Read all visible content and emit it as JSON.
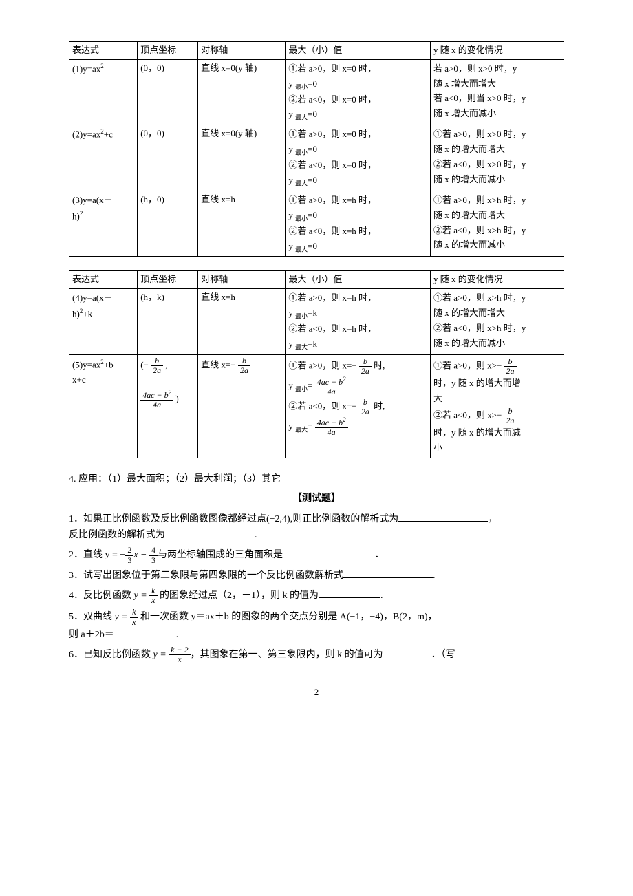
{
  "table1": {
    "headers": [
      "表达式",
      "顶点坐标",
      "对称轴",
      "最大（小）值",
      "y 随 x 的变化情况"
    ],
    "rows": [
      {
        "expr": "(1)y=ax",
        "sup": "2",
        "vertex": "(0，0)",
        "axis": "直线 x=0(y 轴)",
        "mm1": "①若 a>0，则 x=0 时，",
        "mm2": "y 最小=0",
        "mm3": "②若 a<0，则 x=0 时，",
        "mm4": "y 最大=0",
        "ch1": "若 a>0，则 x>0 时，y",
        "ch2": "随 x 增大而增大",
        "ch3": "若 a<0，则当 x>0 时，y",
        "ch4": "随 x 增大而减小"
      },
      {
        "expr": "(2)y=ax",
        "sup": "2",
        "after": "+c",
        "vertex": "(0，0)",
        "axis": "直线 x=0(y 轴)",
        "mm1": "①若 a>0，则 x=0 时，",
        "mm2": "y 最小=0",
        "mm3": "②若 a<0，则 x=0 时，",
        "mm4": "y 最大=0",
        "ch1": "①若 a>0，则 x>0 时，y",
        "ch2": "随 x 的增大而增大",
        "ch3": "②若 a<0，则 x>0 时，y",
        "ch4": "随 x 的增大而减小"
      },
      {
        "expr1": "(3)y=a(x－",
        "expr2": "h)",
        "sup": "2",
        "vertex": "(h，0)",
        "axis": "直线 x=h",
        "mm1": "①若 a>0，则 x=h 时，",
        "mm2": "y 最小=0",
        "mm3": "②若 a<0，则 x=h 时，",
        "mm4": "y 最大=0",
        "ch1": "①若 a>0，则 x>h 时，y",
        "ch2": "随 x 的增大而增大",
        "ch3": "②若 a<0，则 x>h 时，y",
        "ch4": "随 x 的增大而减小"
      }
    ]
  },
  "table2": {
    "headers": [
      "表达式",
      "顶点坐标",
      "对称轴",
      "最大（小）值",
      "y 随 x 的变化情况"
    ],
    "row4": {
      "expr1": "(4)y=a(x－",
      "expr2": "h)",
      "sup": "2",
      "after": "+k",
      "vertex": "(h，k)",
      "axis": "直线 x=h",
      "mm1": "①若 a>0，则 x=h 时，",
      "mm2": "y 最小=k",
      "mm3": "②若 a<0，则 x=h 时，",
      "mm4": "y 最大=k",
      "ch1": "①若 a>0，则 x>h 时，y",
      "ch2": "随 x 的增大而增大",
      "ch3": "②若 a<0，则 x>h 时，y",
      "ch4": "随 x 的增大而减小"
    },
    "row5": {
      "expr1": "(5)y=ax",
      "sup": "2",
      "after1": "+b",
      "expr2": "x+c",
      "vertex_pre": "(− ",
      "vertex_num1": "b",
      "vertex_den1": "2a",
      "vertex_mid": " ,",
      "vertex_num2": "4ac − b",
      "vertex_sup": "2",
      "vertex_den2": "4a",
      "vertex_post": " )",
      "axis_pre": "直线 x=− ",
      "axis_num": "b",
      "axis_den": "2a",
      "mm1_pre": "①若 a>0，则 x=− ",
      "mm1_num": "b",
      "mm1_den": "2a",
      "mm1_post": " 时,",
      "mm2_pre": "y 最小= ",
      "mm2_num": "4ac − b",
      "mm2_sup": "2",
      "mm2_den": "4a",
      "mm3_pre": "②若 a<0，则 x=− ",
      "mm3_num": "b",
      "mm3_den": "2a",
      "mm3_post": " 时,",
      "mm4_pre": "y 最大= ",
      "mm4_num": "4ac − b",
      "mm4_sup": "2",
      "mm4_den": "4a",
      "ch1_pre": "①若 a>0，则 x>− ",
      "ch1_num": "b",
      "ch1_den": "2a",
      "ch2a": "时，y 随 x 的增大而增",
      "ch2b": "大",
      "ch3_pre": "②若 a<0，则 x>− ",
      "ch3_num": "b",
      "ch3_den": "2a",
      "ch4a": "时，y 随 x 的增大而减",
      "ch4b": "小"
    }
  },
  "post_table": "4. 应用：（1）最大面积；（2）最大利润；（3）其它",
  "test_title": "【测试题】",
  "q1a": "1．如果正比例函数及反比例函数图像都经过点(−2,4),则正比例函数的解析式为",
  "q1b": "反比例函数的解析式为",
  "q2_pre": "2．直线 y = ",
  "q2_neg": "−",
  "q2_num1": "2",
  "q2_den1": "3",
  "q2_mid": "x − ",
  "q2_num2": "4",
  "q2_den2": "3",
  "q2_post": "与两坐标轴围成的三角面积是",
  "q3": "3．试写出图象位于第二象限与第四象限的一个反比例函数解析式",
  "q4_pre": "4．反比例函数 ",
  "q4_y": "y = ",
  "q4_num": "k",
  "q4_den": "x",
  "q4_post": " 的图象经过点（2，－1），则 k 的值为",
  "q5_pre": "5．双曲线 ",
  "q5_y": "y = ",
  "q5_num": "k",
  "q5_den": "x",
  "q5_post": " 和一次函数 y＝ax＋b 的图象的两个交点分别是 A(−1，−4)，B(2，m)，",
  "q5b": "则 a＋2b＝",
  "q6_pre": "6．已知反比例函数 ",
  "q6_y": "y = ",
  "q6_num": "k − 2",
  "q6_den": "x",
  "q6_post": "，其图象在第一、第三象限内，则 k 的值可为",
  "q6_end": "．（写",
  "page_num": "2",
  "punct": {
    "comma": "，",
    "period": "．",
    "period2": "."
  }
}
